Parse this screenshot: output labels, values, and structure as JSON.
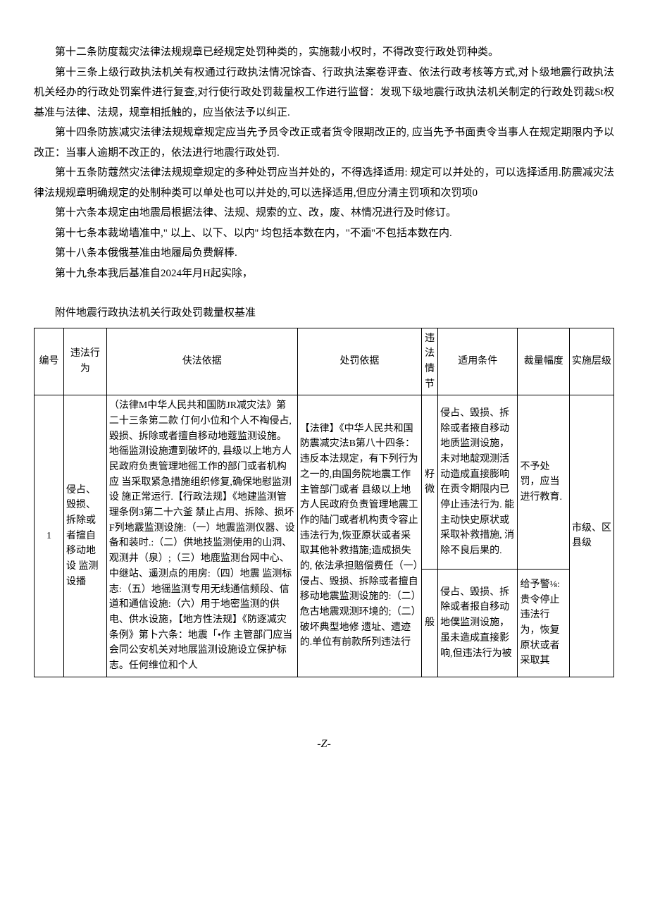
{
  "paragraphs": {
    "p12": "第十二条防度裁灾法律法规规章已经规定处罚种类的，实施裁小权时，不得改变行政处罚种类。",
    "p13": "第十三条上级行政执法机关有权通过行政执法情况馀杳、行政执法案卷评查、依法行政考核等方式,对卜级地震行政执法机关经办的行政处罚案件进行复查,对行使行政处罚裁量权工作进行监督：发现下级地震行政执法机关制定的行政处罚裁St权基准与法律、法规，规章相抵触的，应当依法予以纠正.",
    "p14": "第十四条防族减灾法律法规规章规定应当先予员令改正或者货令限期改正的, 应当先予书面责令当事人在规定期限内予以改正：当事人逾期不改正的，依法进行地震行政处罚.",
    "p15": "第十五条防蔻然灾法律法规规章规定的多种处罚应当并处的，不得选择适用: 规定可以并处的，可以选择适用.防震减灾法律法规规章明确规定的处制种类可以单处也可以并处的,可以选择适用,但应分清主罚项和次罚项0",
    "p16": "第十六条本规定由地震局根据法律、法规、规索的立、改，废、林情况进行及时修订。",
    "p17": "第十七条本裁坳墙准中,\" 以上、以下、以内'' 均包括本数在内，\"不湎\"不包括本数在内.",
    "p18": "第十八条本俄俄基准由地履局负费解棒.",
    "p19": "第十九条本我后基准自2024年月H起实除，"
  },
  "attachment_title": "附件地震行政执法机关行政处罚裁量权基准",
  "table": {
    "headers": {
      "num": "编号",
      "act": "违法行为",
      "basis": "伕法依据",
      "punish": "处罚依据",
      "circ": "违法情节",
      "cond": "适用条件",
      "range": "裁量幅度",
      "level": "实施层级"
    },
    "row1": {
      "num": "1",
      "act": "侵占、毁损、拆除或者擅自移动地设 监测设播",
      "basis": "（法律M中华人民共和国防JR减灾法》第二十三条第二款 仃何小位和个人不裪侵占,毀损、拆除或者擅自移动地蔻监测设施。地徭监测设施遭到破坏的, 县级以上地方人民政府负责管理地徭工作的部门或者机构应 当采取紧急措施组织修复,确保地慰监测设 施正常运行.【行政法规】《地建监测管理条例3第二十六釜 禁止占用、拆除、损坏F列地霰监测设施:（一）地震监测仪器、设备和装时.:（二）供地技监测使用的山洞、观测井（泉）;（三）地鹿监测台网中心、中继站、遥测点的用房:（四）地震 监测标志:（五）地徭监测专用无线通信频段、信道和通信设施:（六）用于地密监测的供电、供水设施，【地方性法规】《防逐减灾条例》第卜六条：地震「•作 主管部门应当会同公安机关对地展监测设施设立保护标志。任何维位和个人",
      "punish": "【法律】《中华人民共和国防震减灾法B第八十四条：违反本法规定，有下列行为之一的,由国务院地震工作主管部门或者 县级以上地方人民政府负责管理地震工作的陆门或者机构责令容止违法行为,恢亚原状或者采取其他补救措施;造成损失的, 依法承担赔偿费任（一）侵占、毁损、拆除或者擅自移动地震监测设施的:（二）危古地震观测环境的;（二）破坏典型地修 遗址、遗迹的.单位有前款所列违法行",
      "circ1": "籽微",
      "cond1": "侵占、毁损、拆除或者掖自移动地质监测设施，未对地靛观测活动造成直接膨响 在贡令期限内已停止违法行为. 能主动快史原状或采取补救措施, 消除不良后果的.",
      "range1": "不予处罚，应当进行教育.",
      "circ2": "般",
      "cond2": "侵占、毁损、拆除或者报自移动地僕监测设施，虽未造成直接影响,但违法行为被",
      "range2": "给予警⅛:贵令停止违法行为，恢复原状或者采取其",
      "level": "市级、区县级"
    }
  },
  "footer": "-Z-"
}
